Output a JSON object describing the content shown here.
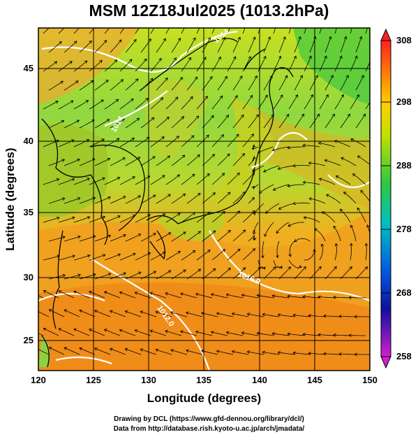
{
  "title": "MSM 12Z18Jul2025 (1013.2hPa)",
  "axes": {
    "xlabel": "Longitude (degrees)",
    "ylabel": "Latitude  (degrees)",
    "x_ticks": [
      "120",
      "125",
      "130",
      "135",
      "140",
      "145",
      "150"
    ],
    "y_ticks": [
      "45",
      "40",
      "35",
      "30",
      "25"
    ]
  },
  "colorbar": {
    "labels": [
      "308",
      "298",
      "288",
      "278",
      "268",
      "258"
    ],
    "colors": [
      "#ff2020",
      "#ff8c00",
      "#ffd000",
      "#d8e000",
      "#40c840",
      "#00c0b0",
      "#0070e0",
      "#1020b0",
      "#c020c0"
    ]
  },
  "contour_labels": [
    "1014",
    "1016.0",
    "1012.0",
    "1010.0"
  ],
  "credits": {
    "line1": "Drawing by DCL (https://www.gfd-dennou.org/library/dcl/)",
    "line2": "Data from http://database.rish.kyoto-u.ac.jp/arch/jmadata/"
  }
}
